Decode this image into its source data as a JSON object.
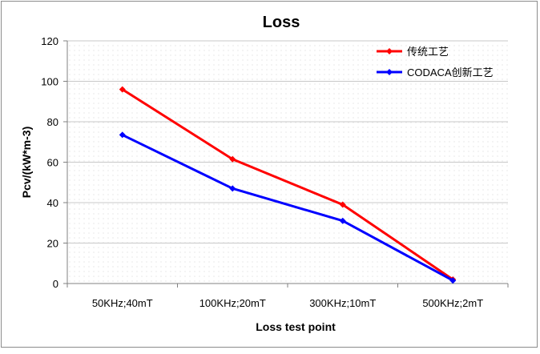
{
  "chart_data": {
    "type": "line",
    "title": "Loss",
    "xlabel": "Loss test point",
    "ylabel": "Pcv/(kW*m-3)",
    "categories": [
      "50KHz;40mT",
      "100KHz;20mT",
      "300KHz;10mT",
      "500KHz;2mT"
    ],
    "ylim": [
      0,
      120
    ],
    "yticks": [
      0,
      20,
      40,
      60,
      80,
      100,
      120
    ],
    "grid": true,
    "legend_position": "top-right",
    "series": [
      {
        "name": "传统工艺",
        "color": "#ff0000",
        "values": [
          96,
          61.5,
          39,
          2
        ]
      },
      {
        "name": "CODACA创新工艺",
        "color": "#0000ff",
        "values": [
          73.5,
          47,
          31,
          1.5
        ]
      }
    ]
  }
}
